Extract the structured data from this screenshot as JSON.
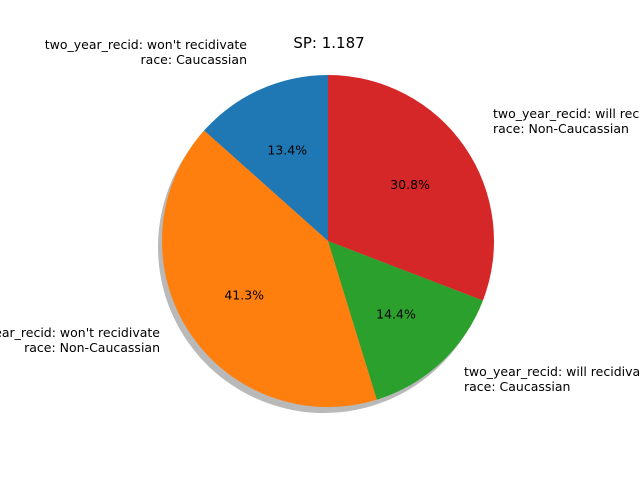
{
  "chart_data": {
    "type": "pie",
    "title": "SP: 1.187",
    "start_angle_deg": 90,
    "direction": "counterclockwise",
    "shadow": true,
    "slices": [
      {
        "label_lines": [
          "two_year_recid: won't recidivate",
          "race: Caucassian"
        ],
        "value": 13.4,
        "pct_text": "13.4%",
        "color": "#1f77b4"
      },
      {
        "label_lines": [
          "two_year_recid: won't recidivate",
          "race: Non-Caucassian"
        ],
        "value": 41.3,
        "pct_text": "41.3%",
        "color": "#ff7f0e"
      },
      {
        "label_lines": [
          "two_year_recid: will recidivate",
          "race: Caucassian"
        ],
        "value": 14.4,
        "pct_text": "14.4%",
        "color": "#2ca02c"
      },
      {
        "label_lines": [
          "two_year_recid: will recidivate",
          "race: Non-Caucassian"
        ],
        "value": 30.8,
        "pct_text": "30.8%",
        "color": "#d62728"
      }
    ]
  }
}
